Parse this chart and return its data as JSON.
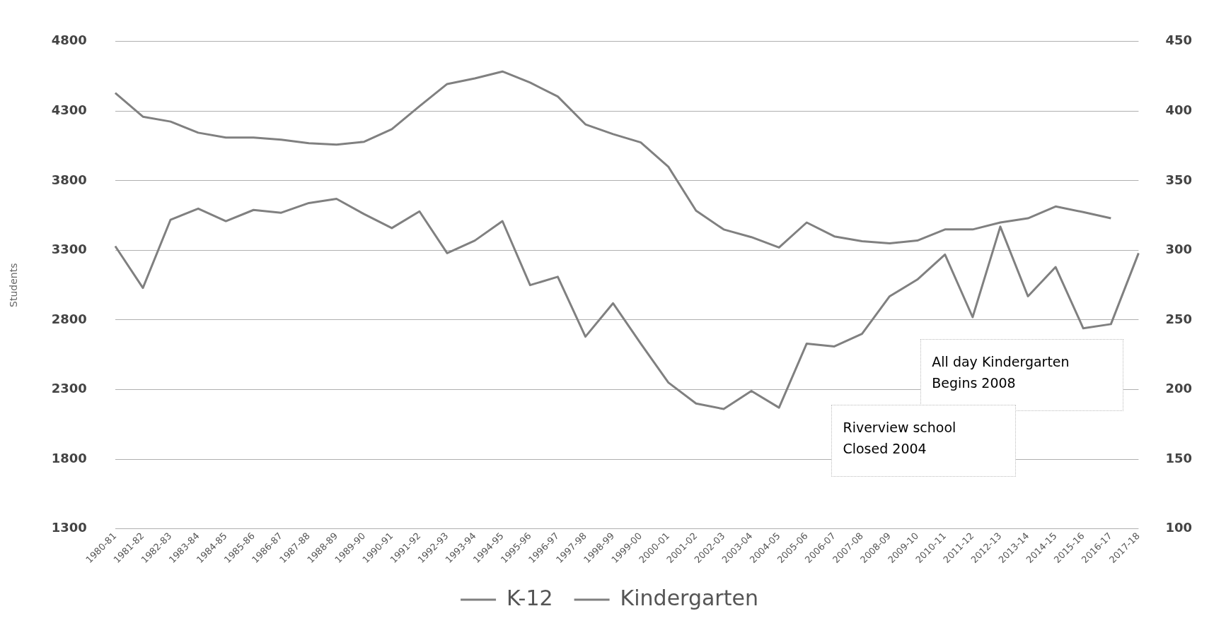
{
  "chart_data": {
    "type": "line",
    "ylabel": "Students",
    "categories": [
      "1980-81",
      "1981-82",
      "1982-83",
      "1983-84",
      "1984-85",
      "1985-86",
      "1986-87",
      "1987-88",
      "1988-89",
      "1989-90",
      "1990-91",
      "1991-92",
      "1992-93",
      "1993-94",
      "1994-95",
      "1995-96",
      "1996-97",
      "1997-98",
      "1998-99",
      "1999-00",
      "2000-01",
      "2001-02",
      "2002-03",
      "2003-04",
      "2004-05",
      "2005-06",
      "2006-07",
      "2007-08",
      "2008-09",
      "2009-10",
      "2010-11",
      "2011-12",
      "2012-13",
      "2013-14",
      "2014-15",
      "2015-16",
      "2016-17",
      "2017-18"
    ],
    "series": [
      {
        "name": "K-12",
        "color": "#808080",
        "values": [
          4430,
          4260,
          4225,
          4145,
          4110,
          4110,
          4095,
          4070,
          4060,
          4080,
          4170,
          4335,
          4495,
          4535,
          4585,
          4505,
          4405,
          4205,
          4135,
          4075,
          3900,
          3585,
          3450,
          3395,
          3320,
          3500,
          3400,
          3365,
          3350,
          3370,
          3450,
          3450,
          3500,
          3530,
          3615,
          3575,
          3530,
          null
        ]
      },
      {
        "name": "Kindergarten",
        "color": "#808080",
        "axis": "y2",
        "values": [
          303,
          273,
          322,
          330,
          321,
          329,
          327,
          334,
          337,
          326,
          316,
          328,
          298,
          307,
          321,
          275,
          281,
          238,
          262,
          233,
          205,
          190,
          186,
          199,
          187,
          233,
          231,
          240,
          267,
          279,
          297,
          252,
          317,
          267,
          288,
          244,
          247,
          298
        ]
      }
    ],
    "ylim": [
      1300,
      4800
    ],
    "yticks": [
      1300,
      1800,
      2300,
      2800,
      3300,
      3800,
      4300,
      4800
    ],
    "y2lim": [
      100,
      450
    ],
    "y2ticks": [
      100,
      150,
      200,
      250,
      300,
      350,
      400,
      450
    ],
    "grid": "y",
    "legend": "bottom",
    "marker": "none",
    "line_style": "solid",
    "annotations": [
      "All day Kindergarten\nBegins 2008",
      "Riverview school\nClosed 2004"
    ]
  }
}
